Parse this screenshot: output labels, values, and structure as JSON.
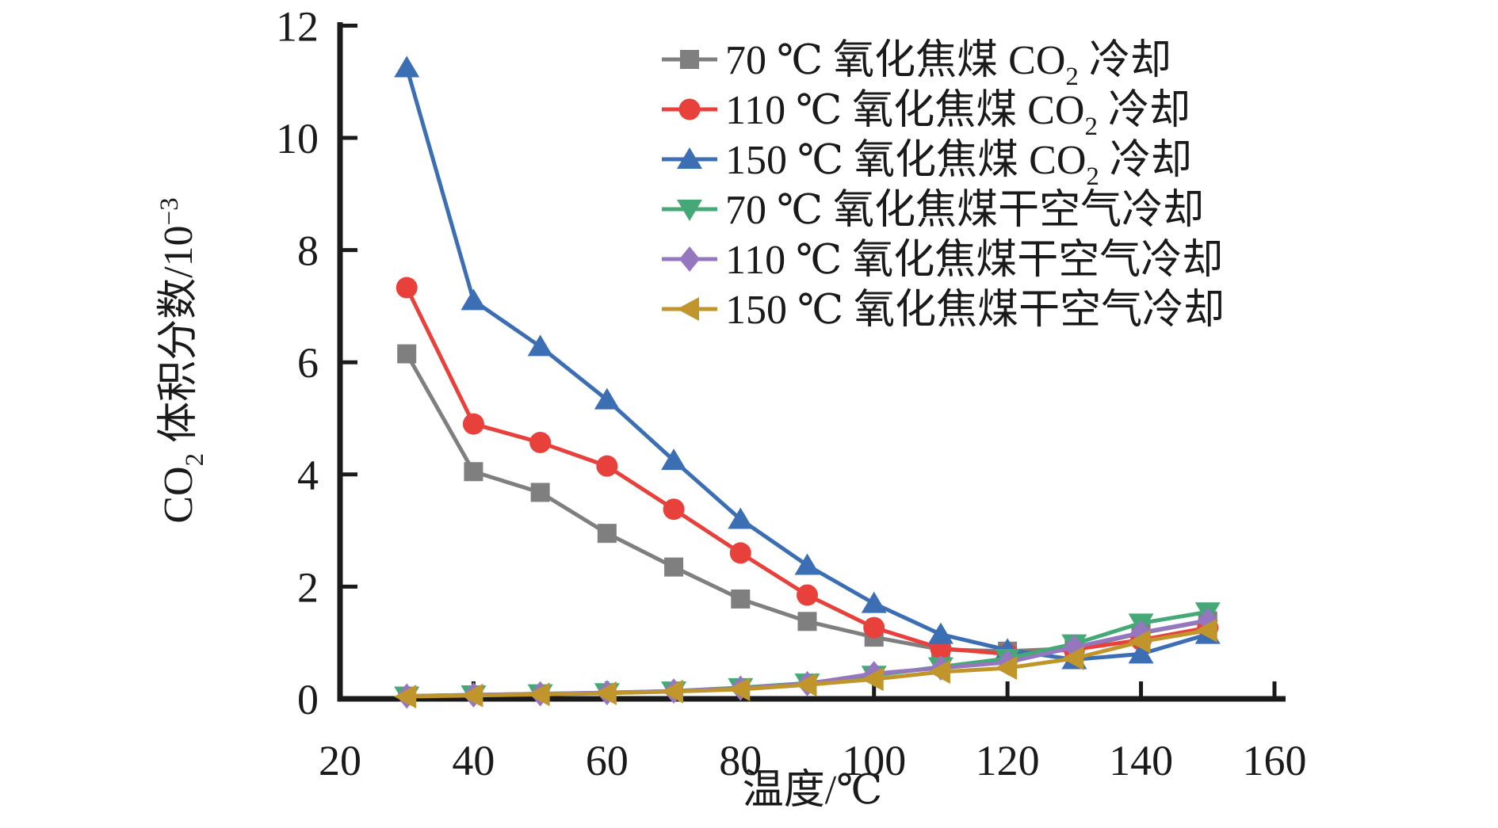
{
  "chart_data": {
    "type": "line",
    "title": "",
    "xlabel": "温度/℃",
    "ylabel": "CO₂ 体积分数/10⁻³",
    "ylabel_parts": [
      {
        "t": "CO"
      },
      {
        "t": "2",
        "sub": true
      },
      {
        "t": " 体积分数/10"
      },
      {
        "t": "−3",
        "sup": true
      }
    ],
    "x": [
      30,
      40,
      50,
      60,
      70,
      80,
      90,
      100,
      110,
      120,
      130,
      140,
      150
    ],
    "xlim": [
      20,
      160
    ],
    "ylim": [
      0,
      12
    ],
    "xticks": [
      20,
      40,
      60,
      80,
      100,
      120,
      140,
      160
    ],
    "yticks": [
      0,
      2,
      4,
      6,
      8,
      10,
      12
    ],
    "grid": false,
    "legend_position": "upper-right-inside",
    "axis_color": "#1a1a1a",
    "series": [
      {
        "name": "70 ℃ 氧化焦煤 CO₂ 冷却",
        "label_parts": [
          {
            "t": "70 ℃ 氧化焦煤 CO"
          },
          {
            "t": "2",
            "sub": true
          },
          {
            "t": " 冷却"
          }
        ],
        "color": "#7f7f7f",
        "marker": "square",
        "values": [
          6.15,
          4.05,
          3.68,
          2.95,
          2.35,
          1.78,
          1.38,
          1.1,
          0.88,
          0.85,
          0.9,
          1.17,
          1.39
        ]
      },
      {
        "name": "110 ℃ 氧化焦煤 CO₂ 冷却",
        "label_parts": [
          {
            "t": "110 ℃ 氧化焦煤 CO"
          },
          {
            "t": "2",
            "sub": true
          },
          {
            "t": " 冷却"
          }
        ],
        "color": "#e8413c",
        "marker": "circle",
        "values": [
          7.33,
          4.9,
          4.57,
          4.15,
          3.38,
          2.6,
          1.85,
          1.27,
          0.9,
          0.8,
          0.88,
          1.05,
          1.27
        ]
      },
      {
        "name": "150 ℃ 氧化焦煤 CO₂ 冷却",
        "label_parts": [
          {
            "t": "150 ℃ 氧化焦煤 CO"
          },
          {
            "t": "2",
            "sub": true
          },
          {
            "t": " 冷却"
          }
        ],
        "color": "#3c6eb4",
        "marker": "triangle-up",
        "values": [
          11.25,
          7.1,
          6.28,
          5.33,
          4.25,
          3.2,
          2.38,
          1.7,
          1.15,
          0.87,
          0.7,
          0.8,
          1.15
        ]
      },
      {
        "name": "70 ℃ 氧化焦煤干空气冷却",
        "label_parts": [
          {
            "t": "70 ℃ 氧化焦煤干空气冷却"
          }
        ],
        "color": "#45a877",
        "marker": "triangle-down",
        "values": [
          0.05,
          0.07,
          0.09,
          0.11,
          0.14,
          0.2,
          0.28,
          0.42,
          0.57,
          0.72,
          0.98,
          1.35,
          1.55
        ]
      },
      {
        "name": "110 ℃ 氧化焦煤干空气冷却",
        "label_parts": [
          {
            "t": "110 ℃ 氧化焦煤干空气冷却"
          }
        ],
        "color": "#9577bf",
        "marker": "diamond",
        "values": [
          0.05,
          0.07,
          0.09,
          0.11,
          0.14,
          0.19,
          0.27,
          0.45,
          0.55,
          0.65,
          0.92,
          1.18,
          1.4
        ]
      },
      {
        "name": "150 ℃ 氧化焦煤干空气冷却",
        "label_parts": [
          {
            "t": "150 ℃ 氧化焦煤干空气冷却"
          }
        ],
        "color": "#c0962c",
        "marker": "triangle-left",
        "values": [
          0.04,
          0.06,
          0.08,
          0.1,
          0.13,
          0.17,
          0.25,
          0.35,
          0.48,
          0.55,
          0.72,
          1.02,
          1.22
        ]
      }
    ]
  }
}
